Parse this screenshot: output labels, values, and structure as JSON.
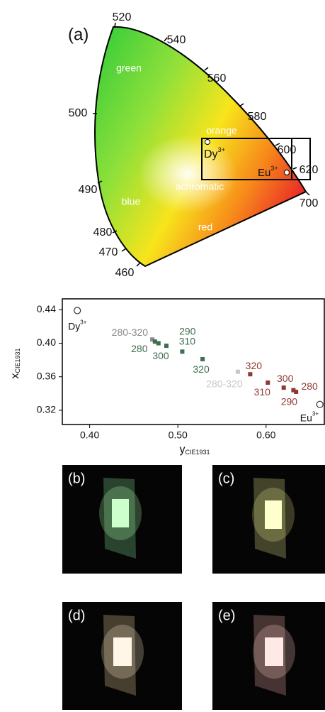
{
  "panel_a": {
    "label": "(a)",
    "wavelengths": [
      "520",
      "540",
      "560",
      "580",
      "600",
      "620",
      "700",
      "500",
      "490",
      "480",
      "470",
      "460"
    ],
    "regions": [
      "green",
      "orange",
      "achromatic",
      "blue",
      "red"
    ],
    "ions": [
      {
        "name": "Dy",
        "sup": "3+"
      },
      {
        "name": "Eu",
        "sup": "3+"
      }
    ]
  },
  "chart_data": {
    "type": "scatter",
    "xlabel": "y",
    "xlabel_sub": "CIE1931",
    "ylabel": "x",
    "ylabel_sub": "CIE1931",
    "xlim": [
      0.369,
      0.666
    ],
    "ylim": [
      0.303,
      0.453
    ],
    "xticks": [
      {
        "value": 0.4,
        "label": "0.40"
      },
      {
        "value": 0.5,
        "label": "0.50"
      },
      {
        "value": 0.6,
        "label": "0.60"
      }
    ],
    "yticks": [
      {
        "value": 0.44,
        "label": "0.44"
      },
      {
        "value": 0.4,
        "label": "0.40"
      },
      {
        "value": 0.36,
        "label": "0.36"
      },
      {
        "value": 0.32,
        "label": "0.32"
      }
    ],
    "series": [
      {
        "marker": "open-circle",
        "color": "#333333",
        "x": [
          0.386
        ],
        "values": [
          0.439
        ],
        "labels": [
          "Dy"
        ],
        "label_sup": [
          "3+"
        ]
      },
      {
        "marker": "square",
        "color": "#8a8a8a",
        "x": [
          0.471
        ],
        "values": [
          0.4045
        ],
        "labels": [
          "280-320"
        ]
      },
      {
        "marker": "square",
        "color": "#3f6e50",
        "x": [
          0.474,
          0.478,
          0.487,
          0.505,
          0.528
        ],
        "values": [
          0.402,
          0.4,
          0.397,
          0.39,
          0.381
        ],
        "labels": [
          "280",
          "290",
          "300",
          "310",
          "320"
        ]
      },
      {
        "marker": "square",
        "color": "#c8c8c8",
        "x": [
          0.568
        ],
        "values": [
          0.366
        ],
        "labels": [
          "280-320"
        ]
      },
      {
        "marker": "square",
        "color": "#8e3a34",
        "x": [
          0.582,
          0.602,
          0.62,
          0.631,
          0.634
        ],
        "values": [
          0.363,
          0.353,
          0.347,
          0.344,
          0.342
        ],
        "labels": [
          "320",
          "310",
          "300",
          "290",
          "280"
        ]
      },
      {
        "marker": "open-circle",
        "color": "#333333",
        "x": [
          0.661
        ],
        "values": [
          0.327
        ],
        "labels": [
          "Eu"
        ],
        "label_sup": [
          "3+"
        ]
      }
    ]
  },
  "photos": [
    {
      "label": "(b)"
    },
    {
      "label": "(c)"
    },
    {
      "label": "(d)"
    },
    {
      "label": "(e)"
    }
  ]
}
